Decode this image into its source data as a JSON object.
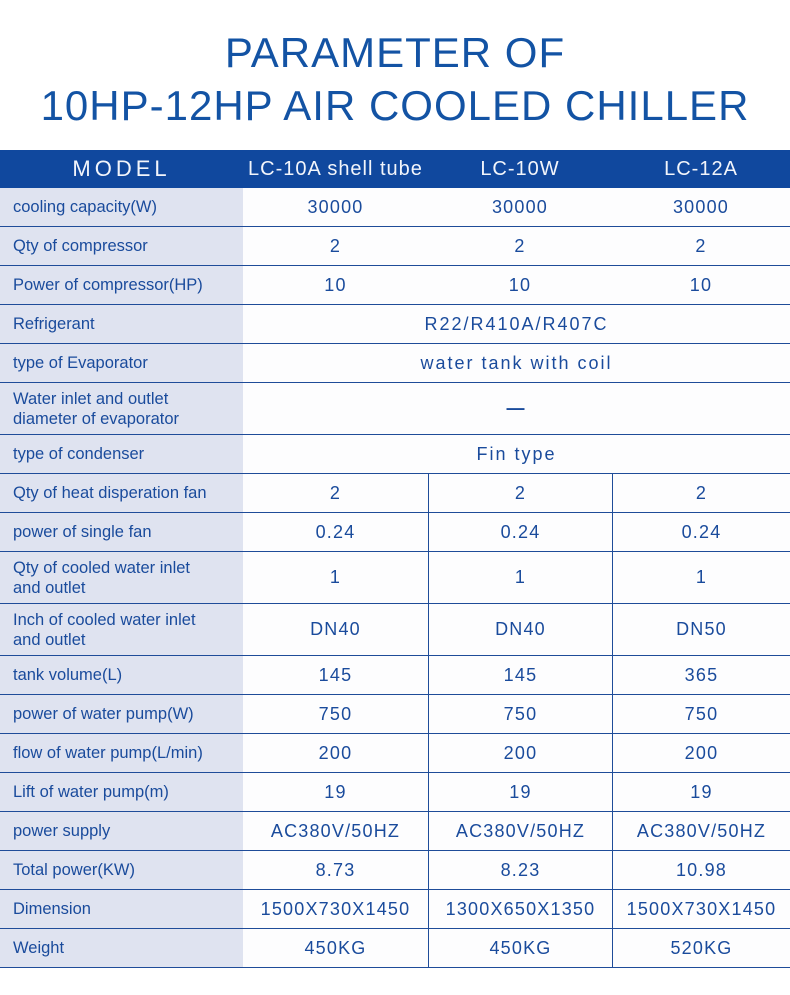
{
  "title": {
    "line1": "PARAMETER OF",
    "line2": "10HP-12HP AIR COOLED CHILLER"
  },
  "colors": {
    "title_text": "#1353a4",
    "header_bg": "#10489e",
    "header_text": "#f2f5fb",
    "label_bg": "#dfe3f0",
    "body_text": "#1a4b9c",
    "border": "#1f4c99",
    "value_bg": "#fdfdfe"
  },
  "table": {
    "header": {
      "model_label": "MODEL",
      "columns": [
        "LC-10A shell tube",
        "LC-10W",
        "LC-12A"
      ]
    },
    "rows": [
      {
        "label": "cooling capacity(W)",
        "type": "plain",
        "values": [
          "30000",
          "30000",
          "30000"
        ]
      },
      {
        "label": "Qty of compressor",
        "type": "plain",
        "values": [
          "2",
          "2",
          "2"
        ]
      },
      {
        "label": "Power of compressor(HP)",
        "type": "plain",
        "values": [
          "10",
          "10",
          "10"
        ]
      },
      {
        "label": "Refrigerant",
        "type": "merged",
        "value": "R22/R410A/R407C"
      },
      {
        "label": "type of Evaporator",
        "type": "merged",
        "value": "water tank with coil"
      },
      {
        "label": "Water inlet and outlet\ndiameter of evaporator",
        "type": "merged",
        "value": "—",
        "two_line": true,
        "dash": true
      },
      {
        "label": "type of condenser",
        "type": "merged",
        "value": "Fin type"
      },
      {
        "label": "Qty of heat disperation fan",
        "type": "bordered",
        "values": [
          "2",
          "2",
          "2"
        ]
      },
      {
        "label": "power of single fan",
        "type": "bordered",
        "values": [
          "0.24",
          "0.24",
          "0.24"
        ]
      },
      {
        "label": "Qty of cooled water inlet\nand outlet",
        "type": "bordered",
        "values": [
          "1",
          "1",
          "1"
        ],
        "two_line": true
      },
      {
        "label": "Inch of cooled water inlet\nand outlet",
        "type": "bordered",
        "values": [
          "DN40",
          "DN40",
          "DN50"
        ],
        "two_line": true
      },
      {
        "label": "tank volume(L)",
        "type": "bordered",
        "values": [
          "145",
          "145",
          "365"
        ]
      },
      {
        "label": "power of water pump(W)",
        "type": "bordered",
        "values": [
          "750",
          "750",
          "750"
        ]
      },
      {
        "label": "flow of water pump(L/min)",
        "type": "bordered",
        "values": [
          "200",
          "200",
          "200"
        ]
      },
      {
        "label": "Lift of water pump(m)",
        "type": "bordered",
        "values": [
          "19",
          "19",
          "19"
        ]
      },
      {
        "label": "power supply",
        "type": "bordered",
        "values": [
          "AC380V/50HZ",
          "AC380V/50HZ",
          "AC380V/50HZ"
        ]
      },
      {
        "label": "Total power(KW)",
        "type": "bordered",
        "values": [
          "8.73",
          "8.23",
          "10.98"
        ]
      },
      {
        "label": "Dimension",
        "type": "bordered",
        "values": [
          "1500X730X1450",
          "1300X650X1350",
          "1500X730X1450"
        ]
      },
      {
        "label": "Weight",
        "type": "bordered",
        "values": [
          "450KG",
          "450KG",
          "520KG"
        ]
      }
    ]
  }
}
